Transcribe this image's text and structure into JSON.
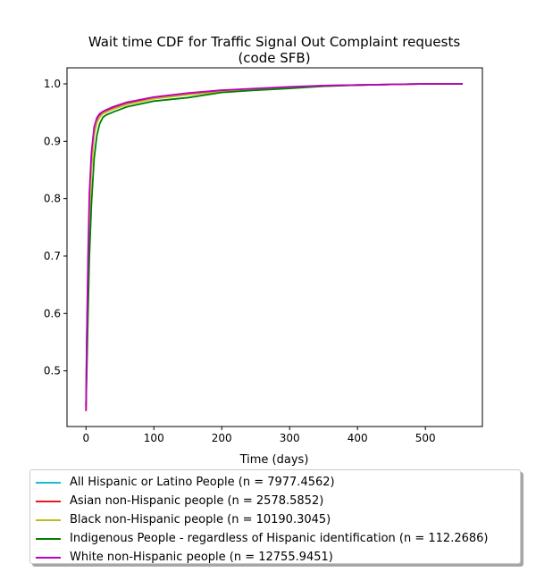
{
  "chart_data": {
    "type": "line",
    "title": "Wait time CDF for Traffic Signal Out Complaint  requests",
    "subtitle": "(code SFB)",
    "xlabel": "Time (days)",
    "ylabel": "",
    "xlim": [
      -28,
      584
    ],
    "ylim": [
      0.403,
      1.028
    ],
    "xticks": [
      0,
      100,
      200,
      300,
      400,
      500
    ],
    "yticks": [
      0.5,
      0.6,
      0.7,
      0.8,
      0.9,
      1.0
    ],
    "xtick_labels": [
      "0",
      "100",
      "200",
      "300",
      "400",
      "500"
    ],
    "ytick_labels": [
      "0.5",
      "0.6",
      "0.7",
      "0.8",
      "0.9",
      "1.0"
    ],
    "grid": false,
    "legend_position": "below",
    "series": [
      {
        "name": "All Hispanic or Latino People (n = 7977.4562)",
        "color": "#17becf",
        "x": [
          0,
          1,
          3,
          5,
          8,
          12,
          16,
          20,
          25,
          30,
          40,
          60,
          100,
          150,
          200,
          250,
          300,
          350,
          400,
          450,
          500,
          555
        ],
        "y": [
          0.44,
          0.54,
          0.68,
          0.79,
          0.87,
          0.92,
          0.937,
          0.945,
          0.95,
          0.953,
          0.958,
          0.966,
          0.976,
          0.983,
          0.988,
          0.991,
          0.994,
          0.997,
          0.998,
          0.999,
          1.0,
          1.0
        ]
      },
      {
        "name": "Asian non-Hispanic people (n = 2578.5852)",
        "color": "#e41a1c",
        "x": [
          0,
          1,
          3,
          5,
          8,
          12,
          16,
          20,
          25,
          30,
          40,
          60,
          100,
          150,
          200,
          250,
          300,
          350,
          400,
          450,
          500,
          555
        ],
        "y": [
          0.43,
          0.53,
          0.67,
          0.78,
          0.86,
          0.915,
          0.935,
          0.944,
          0.949,
          0.952,
          0.957,
          0.965,
          0.975,
          0.982,
          0.987,
          0.99,
          0.993,
          0.997,
          0.998,
          0.999,
          1.0,
          1.0
        ]
      },
      {
        "name": "Black non-Hispanic people (n = 10190.3045)",
        "color": "#bcbd22",
        "x": [
          0,
          1,
          3,
          5,
          8,
          12,
          16,
          20,
          25,
          30,
          40,
          60,
          100,
          150,
          200,
          250,
          300,
          350,
          400,
          450,
          500,
          555
        ],
        "y": [
          0.435,
          0.52,
          0.66,
          0.77,
          0.85,
          0.91,
          0.932,
          0.942,
          0.948,
          0.951,
          0.956,
          0.964,
          0.974,
          0.981,
          0.986,
          0.99,
          0.993,
          0.996,
          0.998,
          0.999,
          1.0,
          1.0
        ]
      },
      {
        "name": "Indigenous People - regardless of Hispanic identification (n = 112.2686)",
        "color": "#008000",
        "x": [
          0,
          1,
          3,
          5,
          8,
          12,
          16,
          20,
          25,
          30,
          40,
          60,
          100,
          150,
          200,
          250,
          300,
          350,
          400,
          450,
          500,
          555
        ],
        "y": [
          0.44,
          0.49,
          0.6,
          0.7,
          0.79,
          0.87,
          0.91,
          0.93,
          0.942,
          0.946,
          0.951,
          0.96,
          0.97,
          0.976,
          0.985,
          0.989,
          0.992,
          0.996,
          0.998,
          0.999,
          1.0,
          1.0
        ]
      },
      {
        "name": "White non-Hispanic people (n = 12755.9451)",
        "color": "#bf00bf",
        "x": [
          0,
          1,
          3,
          5,
          8,
          12,
          16,
          20,
          25,
          30,
          40,
          60,
          100,
          150,
          200,
          250,
          300,
          350,
          400,
          450,
          500,
          555
        ],
        "y": [
          0.43,
          0.55,
          0.7,
          0.81,
          0.88,
          0.925,
          0.941,
          0.948,
          0.952,
          0.955,
          0.96,
          0.968,
          0.977,
          0.984,
          0.989,
          0.992,
          0.995,
          0.997,
          0.998,
          0.999,
          1.0,
          1.0
        ]
      }
    ]
  }
}
